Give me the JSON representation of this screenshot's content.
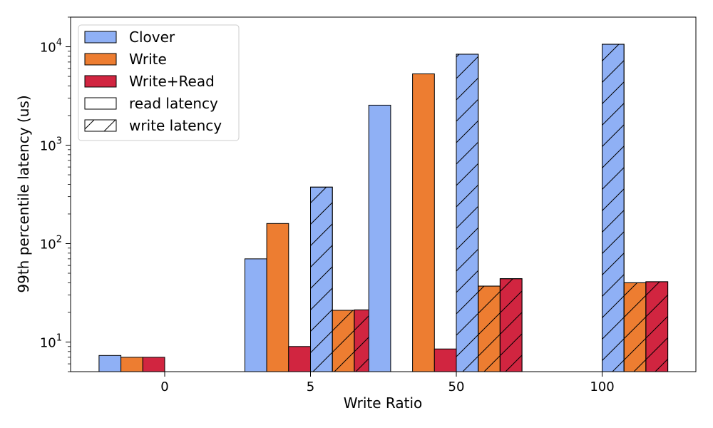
{
  "chart_data": {
    "type": "bar",
    "title": "",
    "xlabel": "Write Ratio",
    "ylabel": "99th percentile latency (us)",
    "yscale": "log",
    "ylim": [
      5,
      20000
    ],
    "categories": [
      "0",
      "5",
      "50",
      "100"
    ],
    "y_ticks": [
      {
        "value": 10,
        "base": "10",
        "exp": "1"
      },
      {
        "value": 100,
        "base": "10",
        "exp": "2"
      },
      {
        "value": 1000,
        "base": "10",
        "exp": "3"
      },
      {
        "value": 10000,
        "base": "10",
        "exp": "4"
      }
    ],
    "series": [
      {
        "name": "Clover",
        "latency": "read latency",
        "color": "#8fb0f5",
        "values": [
          7.3,
          70,
          null,
          null
        ]
      },
      {
        "name": "Write",
        "latency": "read latency",
        "color": "#ed7d31",
        "values": [
          7.0,
          160,
          5300,
          null
        ]
      },
      {
        "name": "Write+Read",
        "latency": "read latency",
        "color": "#d12540",
        "values": [
          7.0,
          9,
          8.5,
          null
        ]
      },
      {
        "name": "Clover",
        "latency": "write latency",
        "color": "#8fb0f5",
        "values": [
          null,
          375,
          8400,
          10600
        ]
      },
      {
        "name": "Write",
        "latency": "write latency",
        "color": "#ed7d31",
        "values": [
          null,
          21,
          37,
          40
        ]
      },
      {
        "name": "Write+Read",
        "latency": "write latency",
        "color": "#d12540",
        "values": [
          null,
          21.2,
          44,
          41
        ]
      }
    ],
    "extra_bars": [
      {
        "category": "50",
        "series": "Clover",
        "latency": "read latency",
        "color": "#8fb0f5",
        "value": 2550
      }
    ],
    "legend": {
      "placement": "top-left",
      "entries": [
        {
          "label": "Clover",
          "color": "#8fb0f5",
          "hatch": false
        },
        {
          "label": "Write",
          "color": "#ed7d31",
          "hatch": false
        },
        {
          "label": "Write+Read",
          "color": "#d12540",
          "hatch": false
        },
        {
          "label": "read latency",
          "color": "#ffffff",
          "hatch": false
        },
        {
          "label": "write latency",
          "color": "#ffffff",
          "hatch": true
        }
      ]
    },
    "grid": false
  }
}
